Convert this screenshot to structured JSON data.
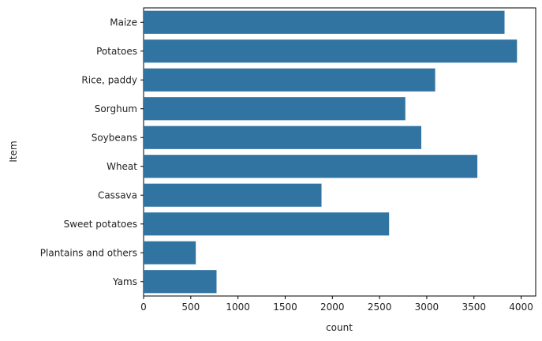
{
  "chart_data": {
    "type": "bar",
    "orientation": "horizontal",
    "title": "",
    "xlabel": "count",
    "ylabel": "Item",
    "categories": [
      "Maize",
      "Potatoes",
      "Rice, paddy",
      "Sorghum",
      "Soybeans",
      "Wheat",
      "Cassava",
      "Sweet potatoes",
      "Plantains and others",
      "Yams"
    ],
    "values": [
      3824,
      3956,
      3089,
      2773,
      2942,
      3536,
      1885,
      2601,
      553,
      773
    ],
    "xlim": [
      0,
      4154
    ],
    "xticks": [
      0,
      500,
      1000,
      1500,
      2000,
      2500,
      3000,
      3500,
      4000
    ],
    "grid": false,
    "bar_color": "#3274a1"
  }
}
